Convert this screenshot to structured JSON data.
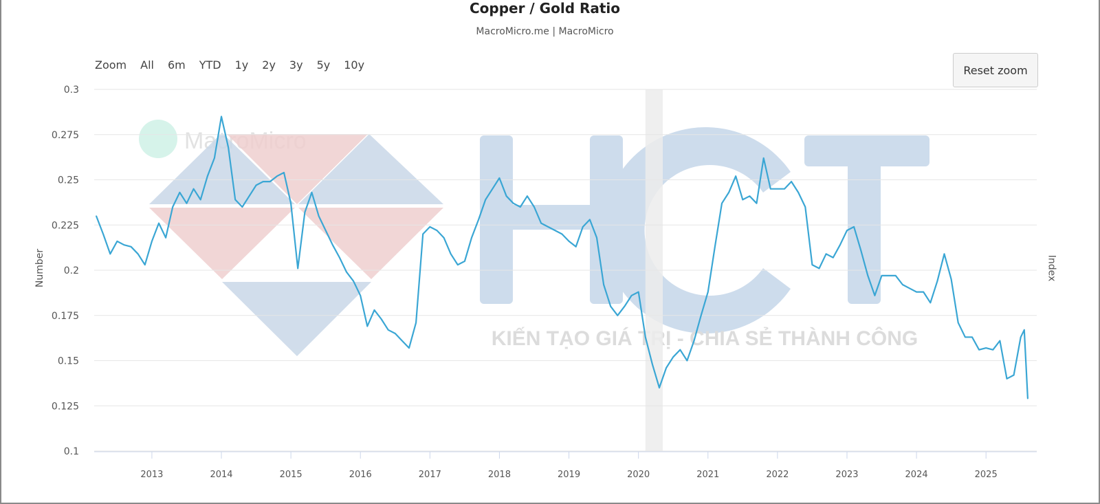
{
  "header": {
    "title": "Copper / Gold Ratio",
    "subtitle": "MacroMicro.me | MacroMicro"
  },
  "range_selector": {
    "label": "Zoom",
    "buttons": [
      "All",
      "6m",
      "YTD",
      "1y",
      "2y",
      "3y",
      "5y",
      "10y"
    ]
  },
  "reset_zoom_label": "Reset zoom",
  "watermarks": {
    "macromicro": "MacroMicro",
    "hct": "HCT",
    "hct_slogan": "KIẾN TẠO GIÁ TRỊ - CHIA SẺ THÀNH CÔNG"
  },
  "colors": {
    "line": "#3aa6d4",
    "plot_band": "#ececec",
    "grid": "#e6e6e6"
  },
  "chart_data": {
    "type": "line",
    "title": "Copper / Gold Ratio",
    "ylabel": "Number",
    "ylabel_right": "Index",
    "ylim": [
      0.1,
      0.3
    ],
    "yticks": [
      0.1,
      0.125,
      0.15,
      0.175,
      0.2,
      0.225,
      0.25,
      0.275,
      0.3
    ],
    "ytick_labels": [
      "0.1",
      "0.125",
      "0.15",
      "0.175",
      "0.2",
      "0.225",
      "0.25",
      "0.275",
      "0.3"
    ],
    "xlim": [
      2012.17,
      2025.73
    ],
    "xticks": [
      2013,
      2014,
      2015,
      2016,
      2017,
      2018,
      2019,
      2020,
      2021,
      2022,
      2023,
      2024,
      2025
    ],
    "xtick_labels": [
      "2013",
      "2014",
      "2015",
      "2016",
      "2017",
      "2018",
      "2019",
      "2020",
      "2021",
      "2022",
      "2023",
      "2024",
      "2025"
    ],
    "grid": true,
    "plot_band": [
      2020.1,
      2020.35
    ],
    "x": [
      2012.2,
      2012.3,
      2012.4,
      2012.5,
      2012.6,
      2012.7,
      2012.8,
      2012.9,
      2013.0,
      2013.1,
      2013.2,
      2013.3,
      2013.4,
      2013.5,
      2013.6,
      2013.7,
      2013.8,
      2013.9,
      2014.0,
      2014.1,
      2014.2,
      2014.3,
      2014.4,
      2014.5,
      2014.6,
      2014.7,
      2014.8,
      2014.9,
      2015.0,
      2015.1,
      2015.2,
      2015.3,
      2015.4,
      2015.5,
      2015.6,
      2015.7,
      2015.8,
      2015.9,
      2016.0,
      2016.1,
      2016.2,
      2016.3,
      2016.4,
      2016.5,
      2016.6,
      2016.7,
      2016.8,
      2016.9,
      2017.0,
      2017.1,
      2017.2,
      2017.3,
      2017.4,
      2017.5,
      2017.6,
      2017.7,
      2017.8,
      2017.9,
      2018.0,
      2018.1,
      2018.2,
      2018.3,
      2018.4,
      2018.5,
      2018.6,
      2018.7,
      2018.8,
      2018.9,
      2019.0,
      2019.1,
      2019.2,
      2019.3,
      2019.4,
      2019.5,
      2019.6,
      2019.7,
      2019.8,
      2019.9,
      2020.0,
      2020.1,
      2020.2,
      2020.3,
      2020.4,
      2020.5,
      2020.6,
      2020.7,
      2020.8,
      2020.9,
      2021.0,
      2021.1,
      2021.2,
      2021.3,
      2021.4,
      2021.5,
      2021.6,
      2021.7,
      2021.8,
      2021.9,
      2022.0,
      2022.1,
      2022.2,
      2022.3,
      2022.4,
      2022.5,
      2022.6,
      2022.7,
      2022.8,
      2022.9,
      2023.0,
      2023.1,
      2023.2,
      2023.3,
      2023.4,
      2023.5,
      2023.6,
      2023.7,
      2023.8,
      2023.9,
      2024.0,
      2024.1,
      2024.2,
      2024.3,
      2024.4,
      2024.5,
      2024.6,
      2024.7,
      2024.8,
      2024.9,
      2025.0,
      2025.1,
      2025.2,
      2025.3,
      2025.4,
      2025.5,
      2025.55,
      2025.6
    ],
    "series": [
      {
        "values": [
          0.23,
          0.22,
          0.209,
          0.216,
          0.214,
          0.213,
          0.209,
          0.203,
          0.216,
          0.226,
          0.218,
          0.235,
          0.243,
          0.237,
          0.245,
          0.239,
          0.252,
          0.262,
          0.285,
          0.268,
          0.239,
          0.235,
          0.241,
          0.247,
          0.249,
          0.249,
          0.252,
          0.254,
          0.237,
          0.201,
          0.232,
          0.243,
          0.23,
          0.222,
          0.214,
          0.207,
          0.199,
          0.194,
          0.186,
          0.169,
          0.178,
          0.173,
          0.167,
          0.165,
          0.161,
          0.157,
          0.171,
          0.22,
          0.224,
          0.222,
          0.218,
          0.209,
          0.203,
          0.205,
          0.218,
          0.228,
          0.239,
          0.245,
          0.251,
          0.241,
          0.237,
          0.235,
          0.241,
          0.235,
          0.226,
          0.224,
          0.222,
          0.22,
          0.216,
          0.213,
          0.224,
          0.228,
          0.218,
          0.192,
          0.18,
          0.175,
          0.18,
          0.186,
          0.188,
          0.163,
          0.148,
          0.135,
          0.146,
          0.152,
          0.156,
          0.15,
          0.161,
          0.175,
          0.188,
          0.213,
          0.237,
          0.243,
          0.252,
          0.239,
          0.241,
          0.237,
          0.262,
          0.245,
          0.245,
          0.245,
          0.249,
          0.243,
          0.235,
          0.203,
          0.201,
          0.209,
          0.207,
          0.214,
          0.222,
          0.224,
          0.211,
          0.197,
          0.186,
          0.197,
          0.197,
          0.197,
          0.192,
          0.19,
          0.188,
          0.188,
          0.182,
          0.194,
          0.209,
          0.195,
          0.171,
          0.163,
          0.163,
          0.156,
          0.157,
          0.156,
          0.161,
          0.14,
          0.142,
          0.163,
          0.167,
          0.129
        ]
      }
    ]
  }
}
